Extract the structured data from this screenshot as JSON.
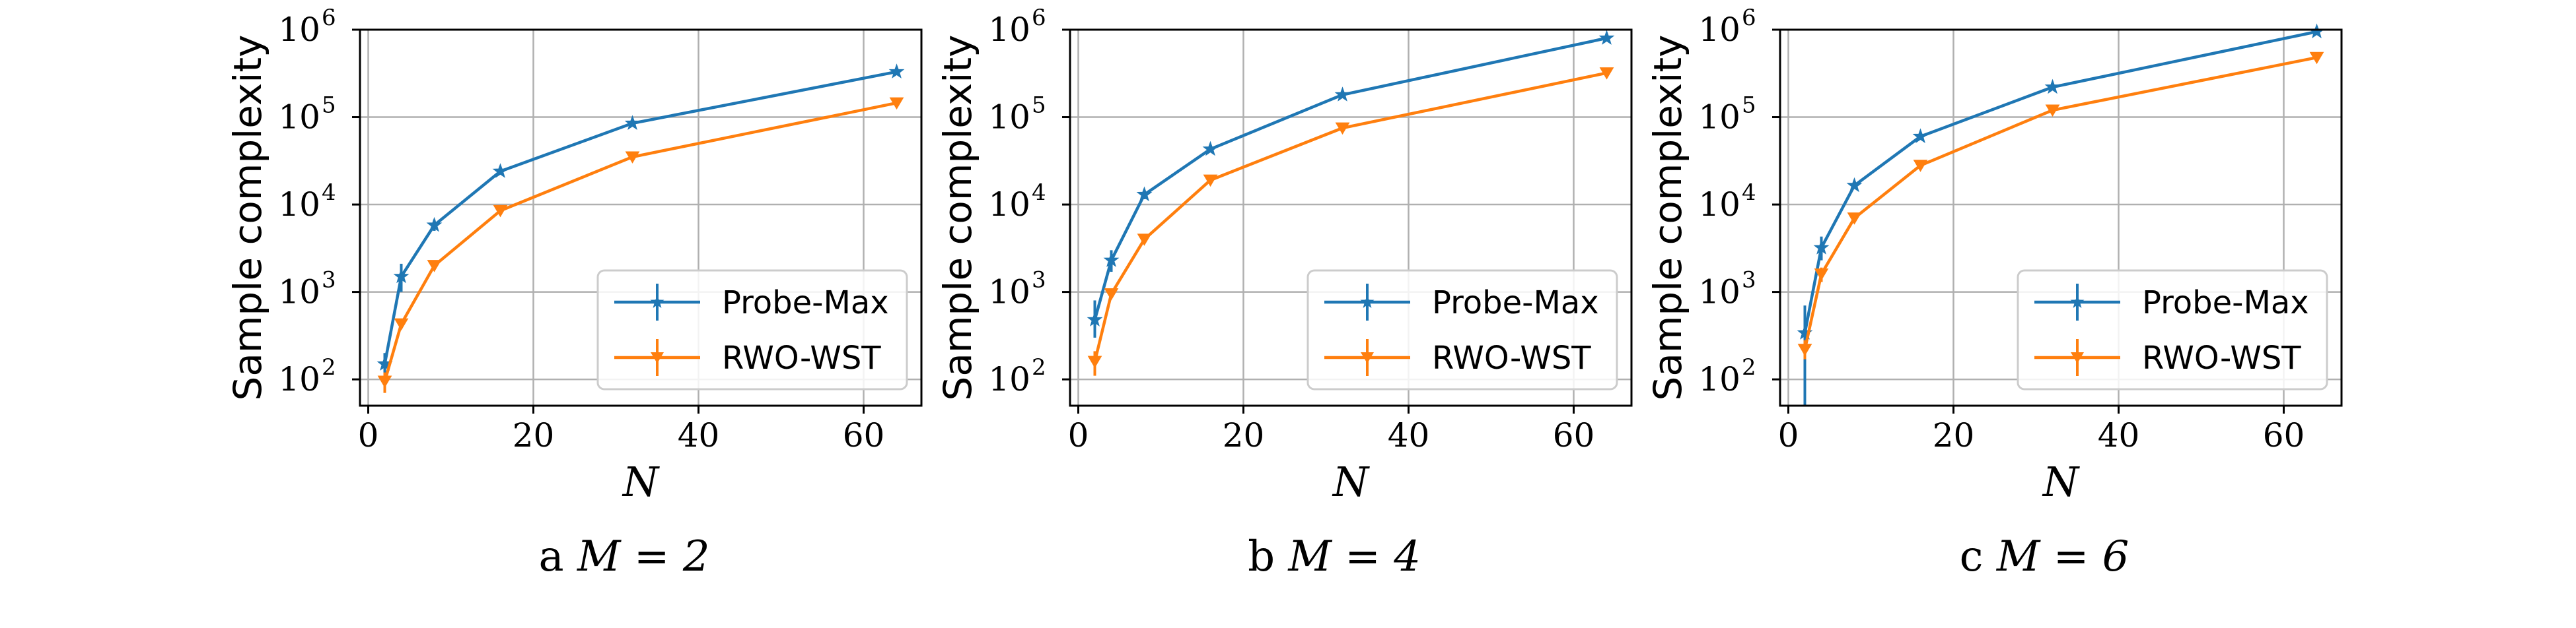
{
  "chart_data": [
    {
      "type": "line",
      "log_y": true,
      "caption": {
        "prefix": "a",
        "math": "M = 2"
      },
      "xlabel": "N",
      "ylabel": "Sample complexity",
      "xlim": [
        -1,
        67
      ],
      "ylim": [
        50,
        1000000
      ],
      "xticks": [
        "0",
        "20",
        "40",
        "60"
      ],
      "xtick_values": [
        0,
        20,
        40,
        60
      ],
      "yticks": [
        {
          "base": "10",
          "exp": "2",
          "value": 100
        },
        {
          "base": "10",
          "exp": "3",
          "value": 1000
        },
        {
          "base": "10",
          "exp": "4",
          "value": 10000
        },
        {
          "base": "10",
          "exp": "5",
          "value": 100000
        },
        {
          "base": "10",
          "exp": "6",
          "value": 1000000
        }
      ],
      "grid": true,
      "legend_position": "lower-right",
      "x": [
        2,
        4,
        8,
        16,
        32,
        64
      ],
      "series": [
        {
          "name": "Probe-Max",
          "color": "#1f77b4",
          "marker": "star",
          "values": [
            150,
            1500,
            5800,
            24000,
            85000,
            330000
          ],
          "err_low": [
            110,
            1000,
            5000,
            22500,
            80000,
            320000
          ],
          "err_high": [
            200,
            2100,
            6700,
            25500,
            90000,
            340000
          ]
        },
        {
          "name": "RWO-WST",
          "color": "#ff7f0e",
          "marker": "triangle-down",
          "values": [
            95,
            430,
            2000,
            8500,
            35000,
            145000
          ],
          "err_low": [
            70,
            380,
            1850,
            8200,
            34000,
            142000
          ],
          "err_high": [
            120,
            480,
            2150,
            8800,
            36000,
            148000
          ]
        }
      ]
    },
    {
      "type": "line",
      "log_y": true,
      "caption": {
        "prefix": "b",
        "math": "M = 4"
      },
      "xlabel": "N",
      "ylabel": "Sample complexity",
      "xlim": [
        -1,
        67
      ],
      "ylim": [
        50,
        1000000
      ],
      "xticks": [
        "0",
        "20",
        "40",
        "60"
      ],
      "xtick_values": [
        0,
        20,
        40,
        60
      ],
      "yticks": [
        {
          "base": "10",
          "exp": "2",
          "value": 100
        },
        {
          "base": "10",
          "exp": "3",
          "value": 1000
        },
        {
          "base": "10",
          "exp": "4",
          "value": 10000
        },
        {
          "base": "10",
          "exp": "5",
          "value": 100000
        },
        {
          "base": "10",
          "exp": "6",
          "value": 1000000
        }
      ],
      "grid": true,
      "legend_position": "lower-right",
      "x": [
        2,
        4,
        8,
        16,
        32,
        64
      ],
      "series": [
        {
          "name": "Probe-Max",
          "color": "#1f77b4",
          "marker": "star",
          "values": [
            480,
            2300,
            13000,
            43000,
            180000,
            800000
          ],
          "err_low": [
            300,
            1700,
            11500,
            40000,
            172000,
            790000
          ],
          "err_high": [
            800,
            3000,
            14500,
            46000,
            188000,
            810000
          ]
        },
        {
          "name": "RWO-WST",
          "color": "#ff7f0e",
          "marker": "triangle-down",
          "values": [
            160,
            950,
            4000,
            19000,
            75000,
            320000
          ],
          "err_low": [
            110,
            850,
            3800,
            18500,
            73000,
            315000
          ],
          "err_high": [
            210,
            1050,
            4200,
            19500,
            77000,
            325000
          ]
        }
      ]
    },
    {
      "type": "line",
      "log_y": true,
      "caption": {
        "prefix": "c",
        "math": "M = 6"
      },
      "xlabel": "N",
      "ylabel": "Sample complexity",
      "xlim": [
        -1,
        67
      ],
      "ylim": [
        50,
        1000000
      ],
      "xticks": [
        "0",
        "20",
        "40",
        "60"
      ],
      "xtick_values": [
        0,
        20,
        40,
        60
      ],
      "yticks": [
        {
          "base": "10",
          "exp": "2",
          "value": 100
        },
        {
          "base": "10",
          "exp": "3",
          "value": 1000
        },
        {
          "base": "10",
          "exp": "4",
          "value": 10000
        },
        {
          "base": "10",
          "exp": "5",
          "value": 100000
        },
        {
          "base": "10",
          "exp": "6",
          "value": 1000000
        }
      ],
      "grid": true,
      "legend_position": "lower-right",
      "x": [
        2,
        4,
        8,
        16,
        32,
        64
      ],
      "series": [
        {
          "name": "Probe-Max",
          "color": "#1f77b4",
          "marker": "star",
          "values": [
            340,
            3200,
            16500,
            60000,
            220000,
            950000
          ],
          "err_low": [
            50,
            2300,
            15000,
            55000,
            212000,
            940000
          ],
          "err_high": [
            700,
            4300,
            18000,
            66000,
            228000,
            960000
          ]
        },
        {
          "name": "RWO-WST",
          "color": "#ff7f0e",
          "marker": "triangle-down",
          "values": [
            220,
            1600,
            7000,
            28000,
            120000,
            480000
          ],
          "err_low": [
            170,
            1300,
            6600,
            27000,
            117000,
            470000
          ],
          "err_high": [
            280,
            1900,
            7400,
            29000,
            123000,
            490000
          ]
        }
      ]
    }
  ]
}
